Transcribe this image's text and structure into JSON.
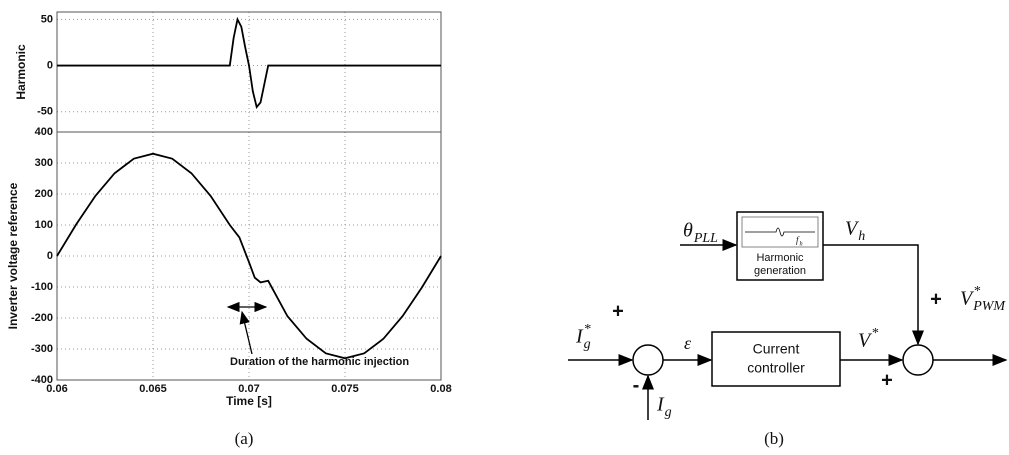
{
  "chart_data": [
    {
      "type": "line",
      "ylabel": "Harmonic",
      "xlim": [
        0.06,
        0.08
      ],
      "ylim": [
        -72,
        58
      ],
      "yticks": [
        50,
        0,
        -50
      ],
      "grid": true,
      "color": "#000000",
      "x": [
        0.06,
        0.069,
        0.0692,
        0.0694,
        0.0696,
        0.0698,
        0.07,
        0.0702,
        0.0704,
        0.0706,
        0.0708,
        0.071,
        0.08
      ],
      "values": [
        0,
        0,
        30,
        50,
        42,
        20,
        0,
        -28,
        -45,
        -40,
        -20,
        0,
        0
      ]
    },
    {
      "type": "line",
      "ylabel": "Inverter voltage reference",
      "xlabel": "Time [s]",
      "annotation": "Duration of the harmonic injection",
      "xlim": [
        0.06,
        0.08
      ],
      "ylim": [
        -400,
        400
      ],
      "xticks": [
        0.06,
        0.065,
        0.07,
        0.075,
        0.08
      ],
      "yticks": [
        -400,
        -300,
        -200,
        -100,
        0,
        100,
        200,
        300,
        400
      ],
      "grid": true,
      "color": "#000000",
      "x": [
        0.06,
        0.061,
        0.062,
        0.063,
        0.064,
        0.065,
        0.066,
        0.067,
        0.068,
        0.069,
        0.0695,
        0.07,
        0.0703,
        0.0706,
        0.071,
        0.072,
        0.073,
        0.074,
        0.075,
        0.076,
        0.077,
        0.078,
        0.079,
        0.08
      ],
      "values": [
        0,
        102,
        194,
        267,
        314,
        330,
        314,
        267,
        194,
        100,
        60,
        -20,
        -70,
        -85,
        -80,
        -194,
        -267,
        -314,
        -330,
        -314,
        -267,
        -194,
        -102,
        0
      ]
    }
  ],
  "diagram": {
    "labels": {
      "theta": {
        "main": "θ",
        "sub": "PLL"
      },
      "vh": {
        "main": "V",
        "sub": "h"
      },
      "igref": {
        "main": "I",
        "sub": "g",
        "sup": "*"
      },
      "eps": {
        "main": "ε"
      },
      "vref": {
        "main": "V",
        "sup": "*"
      },
      "vpwm": {
        "main": "V",
        "sub": "PWM",
        "sup": "*"
      },
      "ig": {
        "main": "I",
        "sub": "g"
      },
      "fh": {
        "main": "f",
        "sub": "h"
      }
    },
    "blocks": {
      "harmonic": [
        "Harmonic",
        "generation"
      ],
      "controller": [
        "Current",
        "controller"
      ]
    },
    "signs": [
      "+",
      "-",
      "+",
      "+"
    ]
  },
  "captions": [
    "(a)",
    "(b)"
  ]
}
